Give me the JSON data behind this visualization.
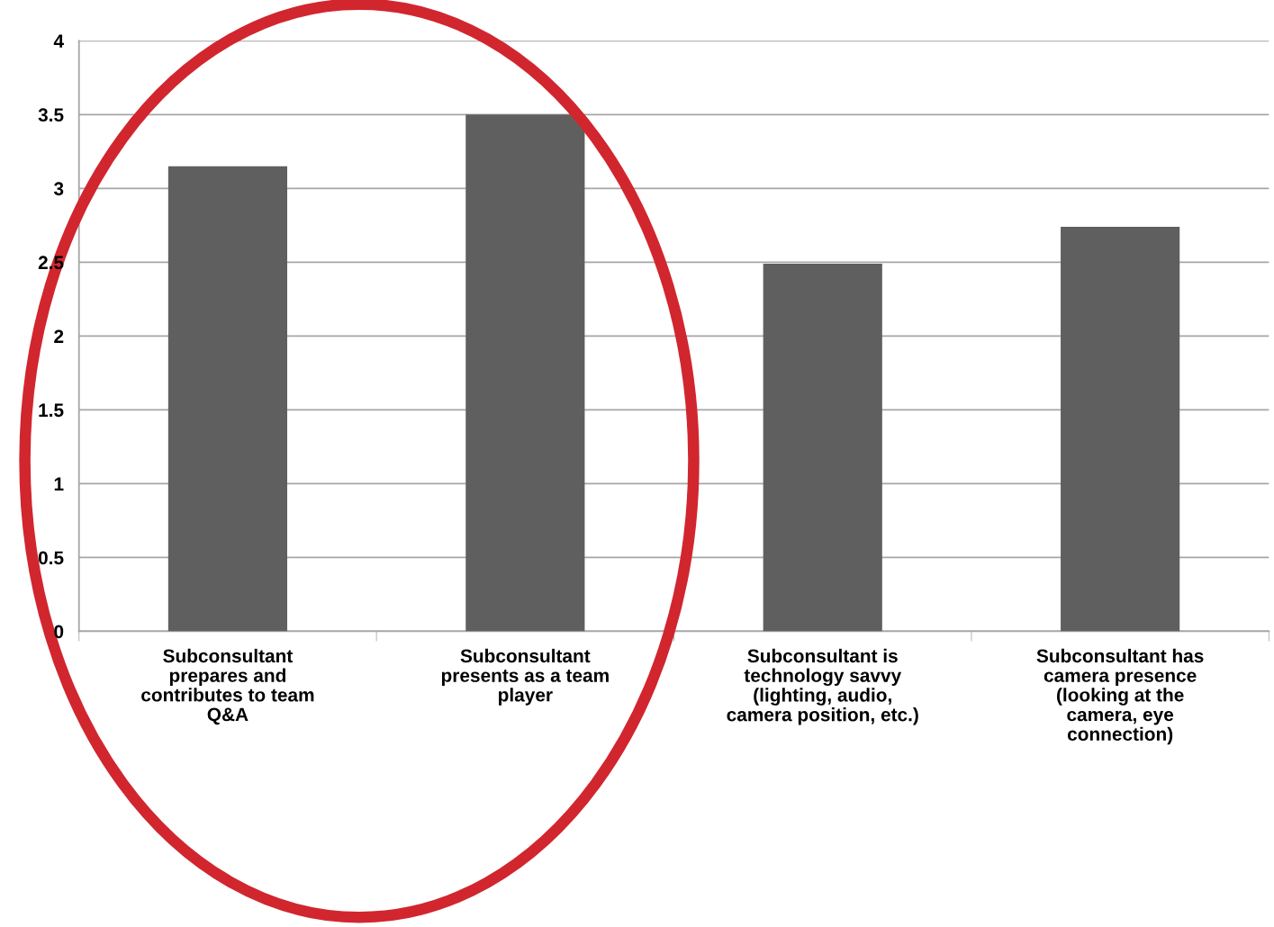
{
  "chart_data": {
    "type": "bar",
    "categories": [
      "Subconsultant\nprepares and\ncontributes to team\nQ&A",
      "Subconsultant\npresents as a team\nplayer",
      "Subconsultant is\ntechnology savvy\n(lighting, audio,\ncamera position, etc.)",
      "Subconsultant has\ncamera presence\n(looking at the\ncamera, eye\nconnection)"
    ],
    "values": [
      3.15,
      3.5,
      2.49,
      2.74
    ],
    "color": "#5f5f5f",
    "ylim": [
      0,
      4
    ],
    "yticks": [
      0,
      0.5,
      1,
      1.5,
      2,
      2.5,
      3,
      3.5,
      4
    ],
    "grid": "y",
    "legend": false
  }
}
